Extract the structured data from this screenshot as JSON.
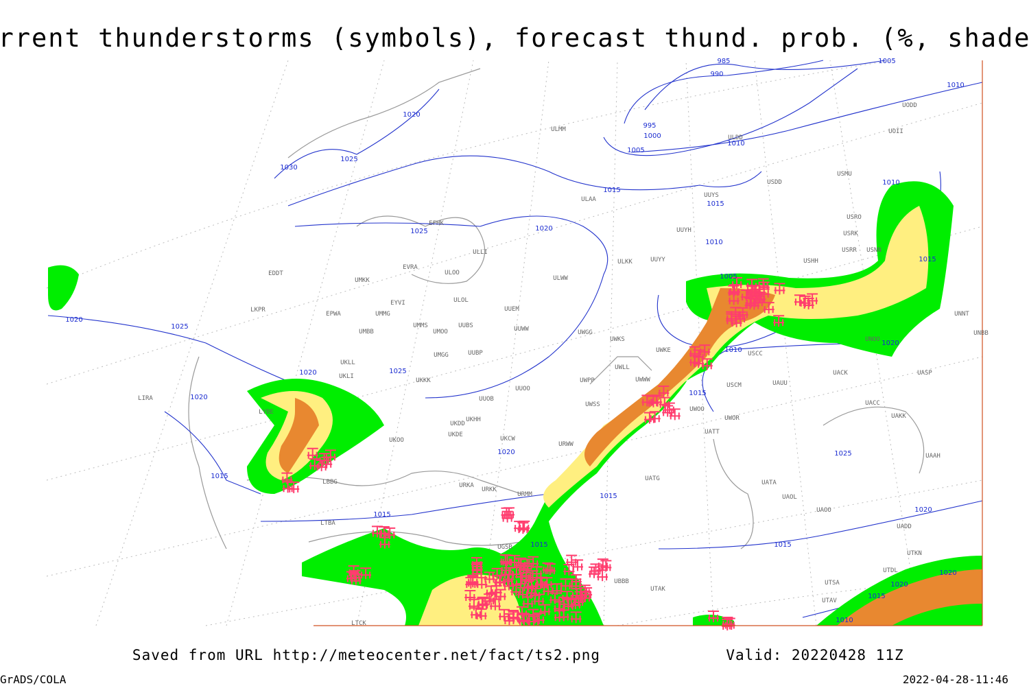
{
  "title": "Current thunderstorms (symbols), forecast thund. prob. (%, shaded)",
  "footer": {
    "source": "Saved from URL http://meteocenter.net/fact/ts2.png",
    "valid": "Valid: 20220428 11Z",
    "software": "GrADS/COLA",
    "timestamp": "2022-04-28-11:46"
  },
  "isobar_labels": [
    "985",
    "990",
    "1005",
    "1010",
    "995",
    "1000",
    "1005",
    "1010",
    "1020",
    "1025",
    "1030",
    "1015",
    "1015",
    "1025",
    "1020",
    "1010",
    "1010",
    "1015",
    "1005",
    "1020",
    "1025",
    "1010",
    "1020",
    "1025",
    "1020",
    "1020",
    "1015",
    "1020",
    "1025",
    "1015",
    "1015",
    "1015",
    "1020",
    "1015",
    "1015",
    "1020",
    "1020",
    "1015",
    "1010"
  ],
  "station_labels": [
    "EFHK",
    "ULLI",
    "EVRA",
    "ULOO",
    "EDDT",
    "UMKK",
    "ULOL",
    "EYVI",
    "UUEM",
    "LKPR",
    "EPWA",
    "UMMG",
    "UMMS",
    "UMOO",
    "UUBS",
    "UUWW",
    "UMBB",
    "UWGG",
    "UWKS",
    "UWKE",
    "USCC",
    "UKLL",
    "UUBP",
    "UKLI",
    "UMGG",
    "UKKK",
    "UUOO",
    "UWPP",
    "UWWW",
    "UWLL",
    "UAUU",
    "UACK",
    "UASP",
    "USCM",
    "LYBE",
    "LIRA",
    "UUOB",
    "UWSS",
    "UWOO",
    "UWOR",
    "UACC",
    "UAKK",
    "UKHH",
    "UKDD",
    "UKOO",
    "UKDE",
    "UKCW",
    "URWW",
    "UATT",
    "UAAH",
    "URKA",
    "URKK",
    "URMM",
    "UATG",
    "UATA",
    "UAOL",
    "UAOO",
    "UADD",
    "LBBG",
    "LTBA",
    "UGSB",
    "UBBB",
    "UTAK",
    "UTDL",
    "UTKN",
    "UTSA",
    "UTAV",
    "LTCK",
    "ULMM",
    "ULDD",
    "UODD",
    "UOII",
    "USMU",
    "USDD",
    "ULAA",
    "UUYS",
    "UUYH",
    "USRO",
    "USRK",
    "USHH",
    "USRR",
    "USNN",
    "ULKK",
    "UUYY",
    "ULWW",
    "UNNT",
    "UNBB",
    "UNOO"
  ]
}
